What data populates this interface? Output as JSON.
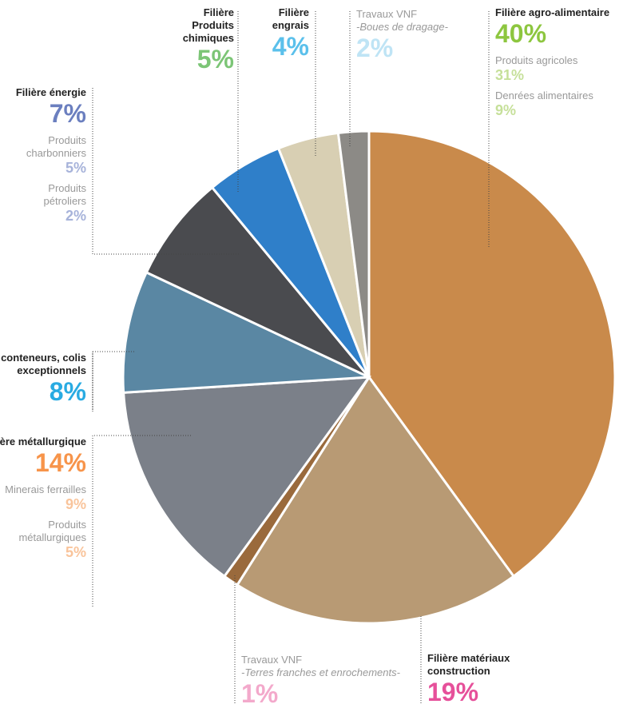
{
  "chart_data": {
    "type": "pie",
    "slices": [
      {
        "name": "Filière agro-alimentaire",
        "value": 40,
        "value_label": "40%",
        "color": "#8dc63f",
        "fill": "#c98a4b",
        "parts": [
          {
            "name": "Produits agricoles",
            "value": 31,
            "value_label": "31%",
            "color": "#c6e09a"
          },
          {
            "name": "Denrées alimentaires",
            "value": 9,
            "value_label": "9%",
            "color": "#c6e09a"
          }
        ]
      },
      {
        "name": "Filière matériaux construction",
        "value": 19,
        "value_label": "19%",
        "color": "#e6509a",
        "fill": "#b89a74"
      },
      {
        "name": "Travaux VNF",
        "note": "-Terres franches et enrochements-",
        "value": 1,
        "value_label": "1%",
        "color": "#f3a9cb",
        "fill": "#9a6a3c"
      },
      {
        "name": "Filière métallurgique",
        "value": 14,
        "value_label": "14%",
        "color": "#f7944a",
        "fill": "#7b8089",
        "parts": [
          {
            "name": "Minerais ferrailles",
            "value": 9,
            "value_label": "9%",
            "color": "#f9c49b"
          },
          {
            "name": "Produits métallurgiques",
            "value": 5,
            "value_label": "5%",
            "color": "#f9c49b"
          }
        ]
      },
      {
        "name": "Filière conteneurs, colis exceptionnels",
        "value": 8,
        "value_label": "8%",
        "color": "#29abe2",
        "fill": "#5a87a3"
      },
      {
        "name": "Filière énergie",
        "value": 7,
        "value_label": "7%",
        "color": "#6b7fbf",
        "fill": "#4a4b4f",
        "parts": [
          {
            "name": "Produits charbonniers",
            "value": 5,
            "value_label": "5%",
            "color": "#a7b3da"
          },
          {
            "name": "Produits pétroliers",
            "value": 2,
            "value_label": "2%",
            "color": "#a7b3da"
          }
        ]
      },
      {
        "name": "Filière Produits chimiques",
        "value": 5,
        "value_label": "5%",
        "color": "#7cc576",
        "fill": "#2f7fc9"
      },
      {
        "name": "Filière engrais",
        "value": 4,
        "value_label": "4%",
        "color": "#5bc0eb",
        "fill": "#d8cfb3"
      },
      {
        "name": "Travaux VNF",
        "note": "-Boues de dragage-",
        "value": 2,
        "value_label": "2%",
        "color": "#bfe4f5",
        "fill": "#8c8a86"
      }
    ]
  }
}
